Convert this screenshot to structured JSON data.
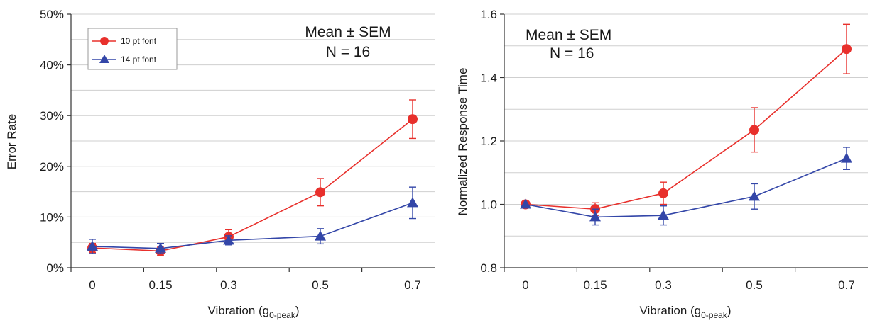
{
  "chart_data": [
    {
      "type": "line",
      "title": "",
      "xlabel": "Vibration (g",
      "xlabel_sub": "0-peak",
      "xlabel_end": ")",
      "ylabel": "Error Rate",
      "categories": [
        "0",
        "0.15",
        "0.3",
        "0.5",
        "0.7"
      ],
      "ylim": [
        0,
        50
      ],
      "yticks": [
        0,
        10,
        20,
        30,
        40,
        50
      ],
      "ytick_labels": [
        "0%",
        "10%",
        "20%",
        "30%",
        "40%",
        "50%"
      ],
      "grid": true,
      "legend_position": "top-left",
      "annotation": [
        "Mean ± SEM",
        "N = 16"
      ],
      "series": [
        {
          "name": "10 pt font",
          "marker": "circle",
          "color": "#e8302c",
          "values": [
            3.9,
            3.3,
            6.1,
            14.9,
            29.3
          ],
          "errors": [
            0.9,
            0.9,
            1.4,
            2.7,
            3.8
          ]
        },
        {
          "name": "14 pt font",
          "marker": "triangle",
          "color": "#3346a8",
          "values": [
            4.2,
            3.8,
            5.4,
            6.2,
            12.8
          ],
          "errors": [
            1.4,
            1.0,
            0.9,
            1.5,
            3.1
          ]
        }
      ]
    },
    {
      "type": "line",
      "title": "",
      "xlabel": "Vibration (g",
      "xlabel_sub": "0-peak",
      "xlabel_end": ")",
      "ylabel": "Normalized Response Time",
      "categories": [
        "0",
        "0.15",
        "0.3",
        "0.5",
        "0.7"
      ],
      "ylim": [
        0.8,
        1.6
      ],
      "yticks": [
        0.8,
        1.0,
        1.2,
        1.4,
        1.6
      ],
      "ytick_labels": [
        "0.8",
        "1.0",
        "1.2",
        "1.4",
        "1.6"
      ],
      "grid": true,
      "legend_position": "none",
      "annotation": [
        "Mean ± SEM",
        "N = 16"
      ],
      "series": [
        {
          "name": "10 pt font",
          "marker": "circle",
          "color": "#e8302c",
          "values": [
            1.0,
            0.985,
            1.035,
            1.235,
            1.49
          ],
          "errors": [
            0.0,
            0.02,
            0.035,
            0.07,
            0.078
          ]
        },
        {
          "name": "14 pt font",
          "marker": "triangle",
          "color": "#3346a8",
          "values": [
            1.0,
            0.96,
            0.965,
            1.025,
            1.145
          ],
          "errors": [
            0.0,
            0.025,
            0.03,
            0.04,
            0.035
          ]
        }
      ]
    }
  ]
}
